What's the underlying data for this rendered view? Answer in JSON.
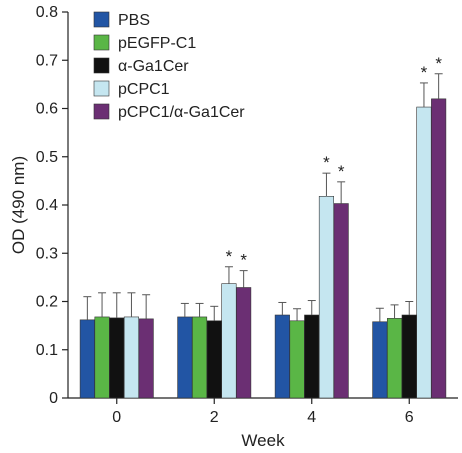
{
  "chart_data": {
    "type": "bar",
    "title": "",
    "xlabel": "Week",
    "ylabel": "OD (490 nm)",
    "ylim": [
      0,
      0.8
    ],
    "yticks": [
      0,
      0.1,
      0.2,
      0.3,
      0.4,
      0.5,
      0.6,
      0.7,
      0.8
    ],
    "categories": [
      "0",
      "2",
      "4",
      "6"
    ],
    "legend_position": "top-left",
    "grid": false,
    "significance_marker": "*",
    "series": [
      {
        "name": "PBS",
        "color": "#2255a4",
        "values": [
          0.162,
          0.168,
          0.172,
          0.158
        ],
        "errors": [
          0.048,
          0.028,
          0.026,
          0.028
        ],
        "significant": [
          false,
          false,
          false,
          false
        ]
      },
      {
        "name": "pEGFP-C1",
        "color": "#5ab646",
        "values": [
          0.168,
          0.168,
          0.16,
          0.165
        ],
        "errors": [
          0.05,
          0.028,
          0.025,
          0.028
        ],
        "significant": [
          false,
          false,
          false,
          false
        ]
      },
      {
        "name": "α-Ga1Cer",
        "color": "#111111",
        "values": [
          0.166,
          0.16,
          0.172,
          0.172
        ],
        "errors": [
          0.052,
          0.03,
          0.03,
          0.028
        ],
        "significant": [
          false,
          false,
          false,
          false
        ]
      },
      {
        "name": "pCPC1",
        "color": "#c5e6f0",
        "values": [
          0.168,
          0.237,
          0.418,
          0.603
        ],
        "errors": [
          0.05,
          0.035,
          0.048,
          0.05
        ],
        "significant": [
          false,
          true,
          true,
          true
        ]
      },
      {
        "name": "pCPC1/α-Ga1Cer",
        "color": "#6b2f73",
        "values": [
          0.164,
          0.229,
          0.403,
          0.62
        ],
        "errors": [
          0.05,
          0.035,
          0.045,
          0.052
        ],
        "significant": [
          false,
          true,
          true,
          true
        ]
      }
    ]
  }
}
